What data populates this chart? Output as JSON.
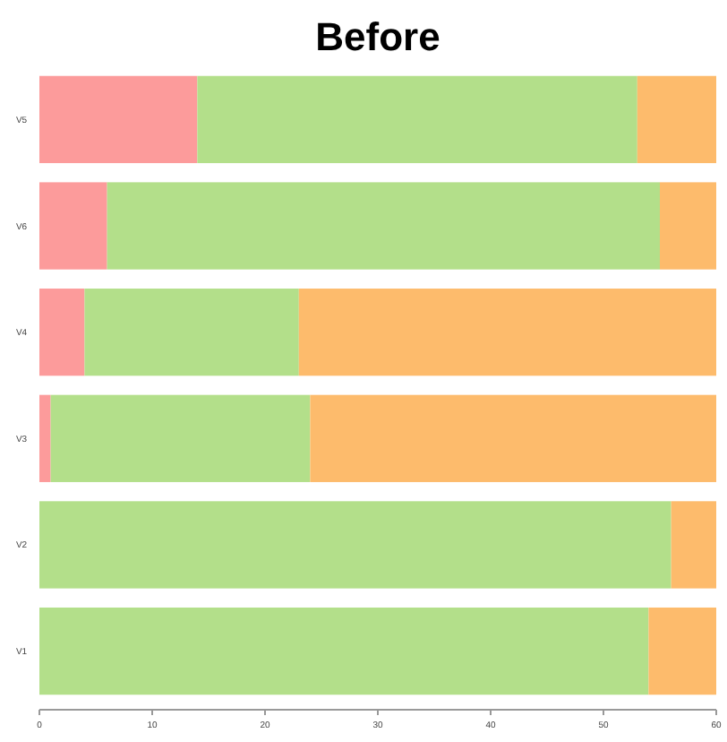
{
  "chart_data": {
    "type": "bar",
    "title": "Before",
    "orientation": "horizontal",
    "stacked": true,
    "categories": [
      "V5",
      "V6",
      "V4",
      "V3",
      "V2",
      "V1"
    ],
    "series": [
      {
        "color": "#fc9b9b",
        "values": [
          14,
          6,
          4,
          1,
          0,
          0
        ]
      },
      {
        "color": "#b3df8a",
        "values": [
          39,
          49,
          19,
          23,
          56,
          54
        ]
      },
      {
        "color": "#fdbb6c",
        "values": [
          7,
          5,
          37,
          36,
          4,
          6
        ]
      }
    ],
    "xlim": [
      0,
      60
    ],
    "xticks": [
      0,
      10,
      20,
      30,
      40,
      50,
      60
    ]
  }
}
